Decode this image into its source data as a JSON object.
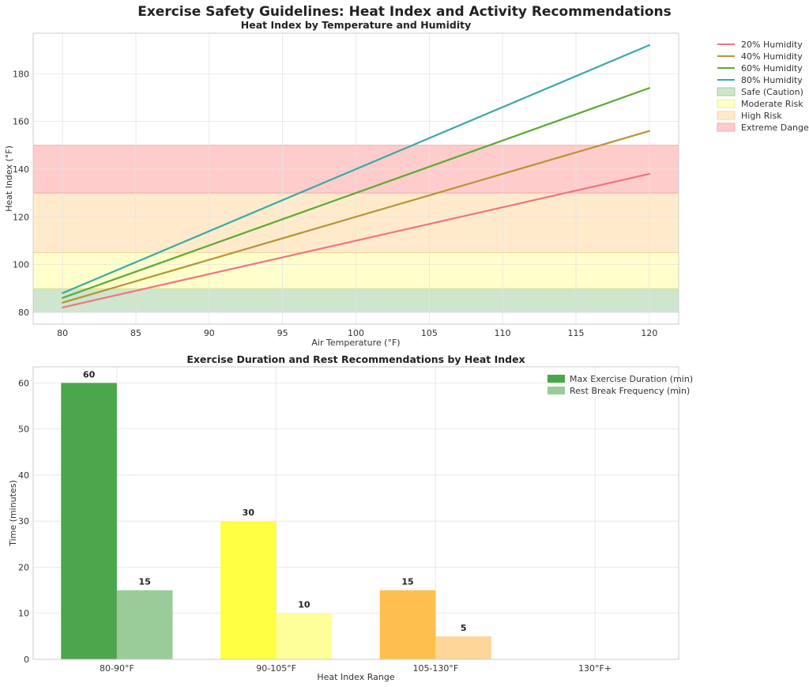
{
  "figure_title": "Exercise Safety Guidelines: Heat Index and Activity Recommendations",
  "chart_data": [
    {
      "type": "line",
      "title": "Heat Index by Temperature and Humidity",
      "xlabel": "Air Temperature (°F)",
      "ylabel": "Heat Index (°F)",
      "xlim": [
        78,
        122
      ],
      "ylim": [
        75,
        197
      ],
      "xticks": [
        80,
        85,
        90,
        95,
        100,
        105,
        110,
        115,
        120
      ],
      "yticks": [
        80,
        100,
        120,
        140,
        160,
        180
      ],
      "series": [
        {
          "name": "20% Humidity",
          "color": "#f07481",
          "x": [
            80,
            120
          ],
          "y": [
            82,
            138
          ]
        },
        {
          "name": "40% Humidity",
          "color": "#b89433",
          "x": [
            80,
            120
          ],
          "y": [
            84,
            156
          ]
        },
        {
          "name": "60% Humidity",
          "color": "#5aab33",
          "x": [
            80,
            120
          ],
          "y": [
            86,
            174
          ]
        },
        {
          "name": "80% Humidity",
          "color": "#3aa9a6",
          "x": [
            80,
            120
          ],
          "y": [
            88,
            192
          ]
        }
      ],
      "bands": [
        {
          "name": "Safe (Caution)",
          "from": 80,
          "to": 90,
          "color": "#cde6cd",
          "edge": "#9ccc9c"
        },
        {
          "name": "Moderate Risk",
          "from": 90,
          "to": 105,
          "color": "#ffffcc",
          "edge": "#f3e99a"
        },
        {
          "name": "High Risk",
          "from": 105,
          "to": 130,
          "color": "#ffebcc",
          "edge": "#f6d69a"
        },
        {
          "name": "Extreme Danger",
          "from": 130,
          "to": 150,
          "color": "#ffcccc",
          "edge": "#f3a8a8"
        }
      ]
    },
    {
      "type": "bar",
      "title": "Exercise Duration and Rest Recommendations by Heat Index",
      "xlabel": "Heat Index Range",
      "ylabel": "Time (minutes)",
      "ylim": [
        0,
        63.5
      ],
      "yticks": [
        0,
        10,
        20,
        30,
        40,
        50,
        60
      ],
      "categories": [
        "80-90°F",
        "90-105°F",
        "105-130°F",
        "130°F+"
      ],
      "series": [
        {
          "name": "Max Exercise Duration (min)",
          "values": [
            60,
            30,
            15,
            0
          ],
          "colors": [
            "#4ca64c",
            "#ffff44",
            "#ffbf4c",
            "#ff4c4c"
          ],
          "legend_color": "#4ca64c"
        },
        {
          "name": "Rest Break Frequency (min)",
          "values": [
            15,
            10,
            5,
            0
          ],
          "colors": [
            "#99cc99",
            "#ffff99",
            "#ffd699",
            "#ff9999"
          ],
          "legend_color": "#99cc99"
        }
      ]
    }
  ]
}
